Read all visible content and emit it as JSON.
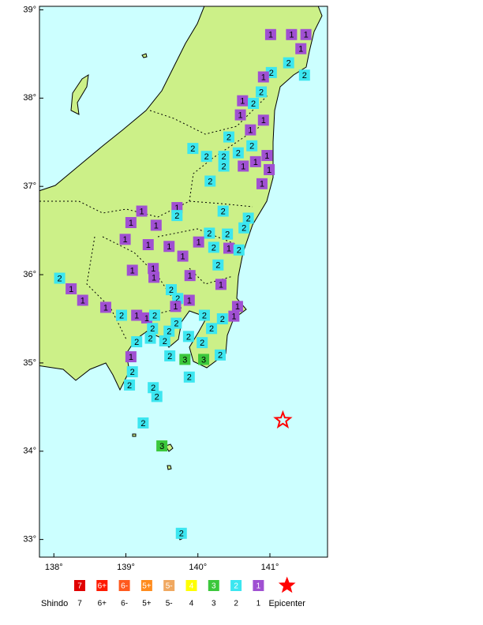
{
  "map": {
    "xlim": [
      137.8,
      141.8
    ],
    "ylim": [
      32.8,
      39.04
    ],
    "xticks": [
      {
        "value": 138,
        "label": "138°"
      },
      {
        "value": 139,
        "label": "139°"
      },
      {
        "value": 140,
        "label": "140°"
      },
      {
        "value": 141,
        "label": "141°"
      }
    ],
    "yticks": [
      {
        "value": 33,
        "label": "33°"
      },
      {
        "value": 34,
        "label": "34°"
      },
      {
        "value": 35,
        "label": "35°"
      },
      {
        "value": 36,
        "label": "36°"
      },
      {
        "value": 37,
        "label": "37°"
      },
      {
        "value": 38,
        "label": "38°"
      },
      {
        "value": 39,
        "label": "39°"
      }
    ],
    "stations": [
      {
        "lon": 141.01,
        "lat": 38.72,
        "shindo": "1"
      },
      {
        "lon": 141.3,
        "lat": 38.72,
        "shindo": "1"
      },
      {
        "lon": 141.5,
        "lat": 38.72,
        "shindo": "1"
      },
      {
        "lon": 141.43,
        "lat": 38.56,
        "shindo": "1"
      },
      {
        "lon": 141.26,
        "lat": 38.4,
        "shindo": "2"
      },
      {
        "lon": 141.48,
        "lat": 38.26,
        "shindo": "2"
      },
      {
        "lon": 141.02,
        "lat": 38.29,
        "shindo": "2"
      },
      {
        "lon": 140.91,
        "lat": 38.24,
        "shindo": "1"
      },
      {
        "lon": 140.88,
        "lat": 38.07,
        "shindo": "2"
      },
      {
        "lon": 140.62,
        "lat": 37.97,
        "shindo": "1"
      },
      {
        "lon": 140.77,
        "lat": 37.94,
        "shindo": "2"
      },
      {
        "lon": 140.59,
        "lat": 37.81,
        "shindo": "1"
      },
      {
        "lon": 140.91,
        "lat": 37.75,
        "shindo": "1"
      },
      {
        "lon": 140.73,
        "lat": 37.64,
        "shindo": "1"
      },
      {
        "lon": 140.43,
        "lat": 37.56,
        "shindo": "2"
      },
      {
        "lon": 140.75,
        "lat": 37.46,
        "shindo": "2"
      },
      {
        "lon": 139.93,
        "lat": 37.43,
        "shindo": "2"
      },
      {
        "lon": 140.12,
        "lat": 37.34,
        "shindo": "2"
      },
      {
        "lon": 140.36,
        "lat": 37.34,
        "shindo": "2"
      },
      {
        "lon": 140.56,
        "lat": 37.38,
        "shindo": "2"
      },
      {
        "lon": 140.96,
        "lat": 37.35,
        "shindo": "1"
      },
      {
        "lon": 140.8,
        "lat": 37.28,
        "shindo": "1"
      },
      {
        "lon": 140.63,
        "lat": 37.23,
        "shindo": "1"
      },
      {
        "lon": 140.36,
        "lat": 37.23,
        "shindo": "2"
      },
      {
        "lon": 140.99,
        "lat": 37.19,
        "shindo": "1"
      },
      {
        "lon": 140.89,
        "lat": 37.03,
        "shindo": "1"
      },
      {
        "lon": 140.17,
        "lat": 37.06,
        "shindo": "2"
      },
      {
        "lon": 139.71,
        "lat": 36.76,
        "shindo": "1"
      },
      {
        "lon": 139.22,
        "lat": 36.72,
        "shindo": "1"
      },
      {
        "lon": 139.71,
        "lat": 36.67,
        "shindo": "2"
      },
      {
        "lon": 140.35,
        "lat": 36.72,
        "shindo": "2"
      },
      {
        "lon": 140.7,
        "lat": 36.64,
        "shindo": "2"
      },
      {
        "lon": 139.07,
        "lat": 36.59,
        "shindo": "1"
      },
      {
        "lon": 139.42,
        "lat": 36.56,
        "shindo": "1"
      },
      {
        "lon": 140.64,
        "lat": 36.53,
        "shindo": "2"
      },
      {
        "lon": 140.16,
        "lat": 36.47,
        "shindo": "2"
      },
      {
        "lon": 140.41,
        "lat": 36.46,
        "shindo": "2"
      },
      {
        "lon": 138.99,
        "lat": 36.4,
        "shindo": "1"
      },
      {
        "lon": 139.31,
        "lat": 36.34,
        "shindo": "1"
      },
      {
        "lon": 140.01,
        "lat": 36.37,
        "shindo": "1"
      },
      {
        "lon": 140.22,
        "lat": 36.31,
        "shindo": "2"
      },
      {
        "lon": 140.43,
        "lat": 36.3,
        "shindo": "1"
      },
      {
        "lon": 140.57,
        "lat": 36.28,
        "shindo": "2"
      },
      {
        "lon": 139.6,
        "lat": 36.32,
        "shindo": "1"
      },
      {
        "lon": 139.79,
        "lat": 36.21,
        "shindo": "1"
      },
      {
        "lon": 140.28,
        "lat": 36.11,
        "shindo": "2"
      },
      {
        "lon": 139.09,
        "lat": 36.05,
        "shindo": "1"
      },
      {
        "lon": 139.38,
        "lat": 36.07,
        "shindo": "1"
      },
      {
        "lon": 139.39,
        "lat": 35.97,
        "shindo": "1"
      },
      {
        "lon": 139.89,
        "lat": 35.99,
        "shindo": "1"
      },
      {
        "lon": 138.08,
        "lat": 35.96,
        "shindo": "2"
      },
      {
        "lon": 140.32,
        "lat": 35.89,
        "shindo": "1"
      },
      {
        "lon": 138.24,
        "lat": 35.84,
        "shindo": "1"
      },
      {
        "lon": 139.63,
        "lat": 35.83,
        "shindo": "2"
      },
      {
        "lon": 138.4,
        "lat": 35.71,
        "shindo": "1"
      },
      {
        "lon": 139.72,
        "lat": 35.73,
        "shindo": "2"
      },
      {
        "lon": 139.88,
        "lat": 35.71,
        "shindo": "1"
      },
      {
        "lon": 139.69,
        "lat": 35.64,
        "shindo": "1"
      },
      {
        "lon": 138.72,
        "lat": 35.63,
        "shindo": "1"
      },
      {
        "lon": 140.55,
        "lat": 35.64,
        "shindo": "1"
      },
      {
        "lon": 138.94,
        "lat": 35.54,
        "shindo": "2"
      },
      {
        "lon": 139.15,
        "lat": 35.54,
        "shindo": "1"
      },
      {
        "lon": 139.29,
        "lat": 35.51,
        "shindo": "1"
      },
      {
        "lon": 139.4,
        "lat": 35.54,
        "shindo": "2"
      },
      {
        "lon": 140.09,
        "lat": 35.54,
        "shindo": "2"
      },
      {
        "lon": 140.5,
        "lat": 35.53,
        "shindo": "1"
      },
      {
        "lon": 140.34,
        "lat": 35.5,
        "shindo": "2"
      },
      {
        "lon": 139.7,
        "lat": 35.45,
        "shindo": "2"
      },
      {
        "lon": 139.37,
        "lat": 35.39,
        "shindo": "2"
      },
      {
        "lon": 140.19,
        "lat": 35.39,
        "shindo": "2"
      },
      {
        "lon": 139.6,
        "lat": 35.36,
        "shindo": "2"
      },
      {
        "lon": 139.34,
        "lat": 35.28,
        "shindo": "2"
      },
      {
        "lon": 139.87,
        "lat": 35.3,
        "shindo": "2"
      },
      {
        "lon": 139.54,
        "lat": 35.25,
        "shindo": "2"
      },
      {
        "lon": 139.15,
        "lat": 35.24,
        "shindo": "2"
      },
      {
        "lon": 140.06,
        "lat": 35.23,
        "shindo": "2"
      },
      {
        "lon": 139.07,
        "lat": 35.07,
        "shindo": "1"
      },
      {
        "lon": 139.61,
        "lat": 35.08,
        "shindo": "2"
      },
      {
        "lon": 139.82,
        "lat": 35.04,
        "shindo": "3"
      },
      {
        "lon": 140.08,
        "lat": 35.04,
        "shindo": "3"
      },
      {
        "lon": 140.31,
        "lat": 35.09,
        "shindo": "2"
      },
      {
        "lon": 139.09,
        "lat": 34.9,
        "shindo": "2"
      },
      {
        "lon": 139.88,
        "lat": 34.84,
        "shindo": "2"
      },
      {
        "lon": 139.05,
        "lat": 34.75,
        "shindo": "2"
      },
      {
        "lon": 139.38,
        "lat": 34.72,
        "shindo": "2"
      },
      {
        "lon": 139.43,
        "lat": 34.62,
        "shindo": "2"
      },
      {
        "lon": 139.24,
        "lat": 34.32,
        "shindo": "2"
      },
      {
        "lon": 139.5,
        "lat": 34.06,
        "shindo": "3"
      },
      {
        "lon": 139.77,
        "lat": 33.07,
        "shindo": "2"
      }
    ],
    "epicenter": {
      "lon": 141.18,
      "lat": 34.35,
      "color": "#ff0000"
    }
  },
  "legend": {
    "title": "Shindo",
    "items": [
      {
        "label": "7",
        "color": "#e00000"
      },
      {
        "label": "6+",
        "color": "#ff1a00"
      },
      {
        "label": "6-",
        "color": "#ff5a1e"
      },
      {
        "label": "5+",
        "color": "#ff8c1e"
      },
      {
        "label": "5-",
        "color": "#f0a860"
      },
      {
        "label": "4",
        "color": "#ffff00"
      },
      {
        "label": "3",
        "color": "#3cc83c"
      },
      {
        "label": "2",
        "color": "#3ce6f0"
      },
      {
        "label": "1",
        "color": "#a050d2"
      }
    ],
    "epicenter_label": "Epicenter"
  }
}
